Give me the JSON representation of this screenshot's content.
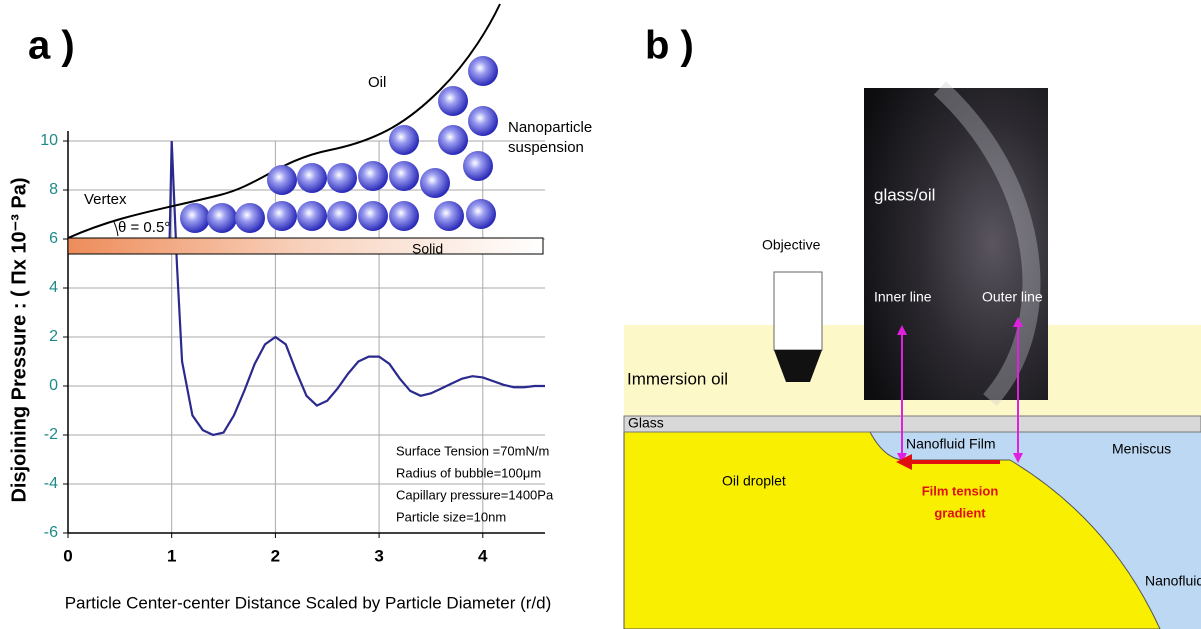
{
  "panel_labels": [
    "a )",
    "b )"
  ],
  "chart_data": {
    "type": "line",
    "x_label": "Particle Center-center Distance Scaled by Particle Diameter (r/d)",
    "y_label": "Disjoining Pressure : ( Πx 10⁻³ Pa)",
    "x": [
      0.98,
      1.0,
      1.05,
      1.1,
      1.2,
      1.3,
      1.4,
      1.5,
      1.6,
      1.7,
      1.8,
      1.9,
      2.0,
      2.1,
      2.2,
      2.3,
      2.4,
      2.5,
      2.6,
      2.7,
      2.8,
      2.9,
      3.0,
      3.1,
      3.2,
      3.3,
      3.4,
      3.5,
      3.6,
      3.7,
      3.8,
      3.9,
      4.0,
      4.1,
      4.2,
      4.3,
      4.4,
      4.5,
      4.6
    ],
    "series": [
      {
        "color": "#2a2a8e",
        "values": [
          6,
          10,
          5,
          1,
          -1.2,
          -1.8,
          -2,
          -1.9,
          -1.2,
          -0.2,
          0.9,
          1.7,
          2.0,
          1.7,
          0.6,
          -0.4,
          -0.8,
          -0.6,
          -0.1,
          0.5,
          1.0,
          1.2,
          1.2,
          0.9,
          0.3,
          -0.2,
          -0.4,
          -0.3,
          -0.1,
          0.1,
          0.3,
          0.4,
          0.35,
          0.2,
          0.05,
          -0.05,
          -0.05,
          0,
          0
        ]
      }
    ],
    "xlim": [
      0,
      4.6
    ],
    "xticks": [
      0,
      1,
      2,
      3,
      4
    ],
    "ylim": [
      -6,
      10
    ],
    "yticks": [
      -6,
      -4,
      -2,
      0,
      2,
      4,
      6,
      8,
      10
    ],
    "grid": true,
    "annotations": [
      "Surface Tension =70mN/m",
      "Radius of bubble=100μm",
      "Capillary pressure=1400Pa",
      "Particle size=10nm"
    ],
    "inset": {
      "oil": "Oil",
      "suspension": [
        "Nanoparticle",
        "suspension"
      ],
      "vertex": "Vertex",
      "angle": "θ = 0.5°",
      "solid": "Solid"
    }
  },
  "diagram": {
    "objective": "Objective",
    "photo_label": "glass/oil",
    "inner_line": "Inner line",
    "outer_line": "Outer line",
    "immersion_oil": "Immersion oil",
    "glass": "Glass",
    "film": "Nanofluid Film",
    "meniscus": "Meniscus",
    "oil_droplet": "Oil droplet",
    "tension": [
      "Film tension",
      "gradient"
    ],
    "nanofluid": "Nanofluid"
  }
}
